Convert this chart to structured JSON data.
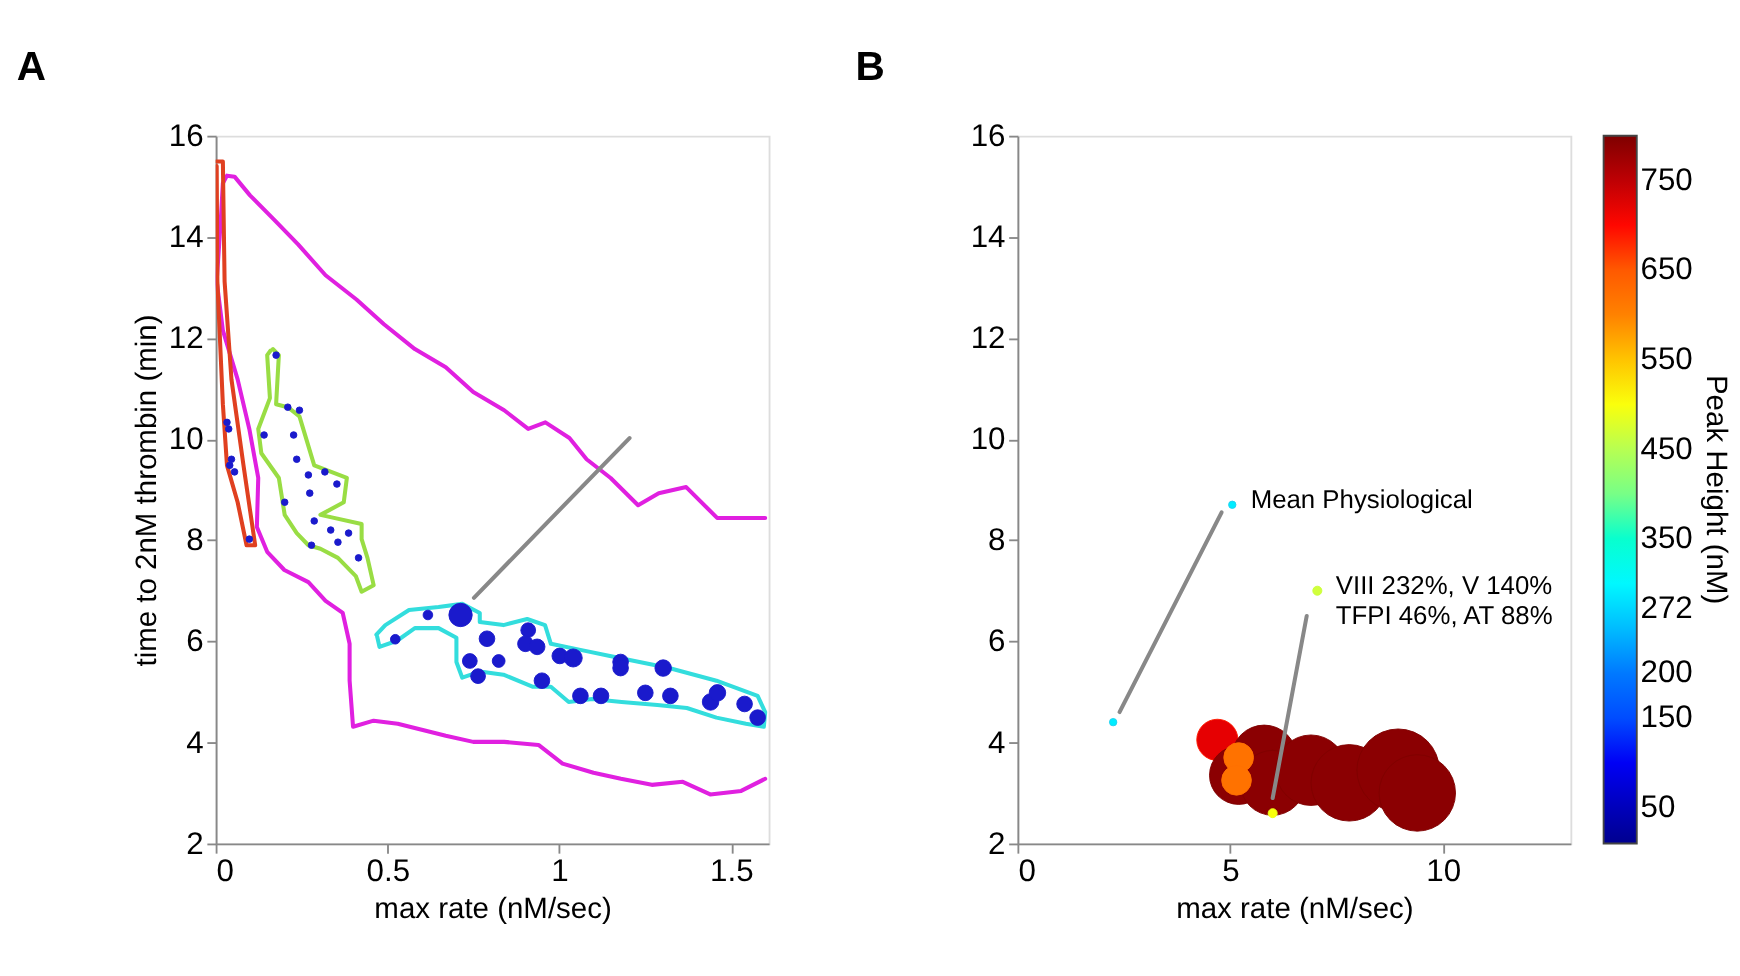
{
  "chart_data": [
    {
      "type": "line",
      "title": "A",
      "xlabel": "max rate (nM/sec)",
      "ylabel": "time to 2nM thrombin (min)",
      "xlim": [
        0,
        1.61
      ],
      "ylim": [
        2,
        16
      ],
      "xticks": [
        0,
        0.5,
        1,
        1.5
      ],
      "yticks": [
        2,
        4,
        6,
        8,
        10,
        12,
        14,
        16
      ],
      "series": [
        {
          "color": "#e020e0",
          "x": [
            1.6,
            1.46,
            1.37,
            1.29,
            1.23,
            1.15,
            1.08,
            1.03,
            0.96,
            0.91,
            0.84,
            0.75,
            0.67,
            0.58,
            0.49,
            0.41,
            0.32,
            0.24,
            0.17,
            0.1,
            0.055,
            0.033,
            0.021,
            0.015,
            0.003,
            0.021,
            0.064,
            0.098,
            0.124,
            0.12,
            0.15,
            0.2,
            0.27,
            0.32,
            0.37,
            0.39,
            0.39,
            0.4,
            0.46,
            0.53,
            0.6,
            0.67,
            0.75,
            0.84,
            0.94,
            1.01,
            1.1,
            1.18,
            1.27,
            1.36,
            1.44,
            1.53,
            1.6
          ],
          "values": [
            8.44,
            8.44,
            9.05,
            8.93,
            8.69,
            9.23,
            9.6,
            10.02,
            10.33,
            10.2,
            10.57,
            10.93,
            11.42,
            11.78,
            12.27,
            12.76,
            13.24,
            13.85,
            14.34,
            14.82,
            15.19,
            15.21,
            15.06,
            14.34,
            13.12,
            12.15,
            11.18,
            10.2,
            9.23,
            8.26,
            7.77,
            7.41,
            7.17,
            6.8,
            6.56,
            5.95,
            5.22,
            4.31,
            4.43,
            4.37,
            4.25,
            4.13,
            4.01,
            4.01,
            3.95,
            3.58,
            3.4,
            3.28,
            3.16,
            3.22,
            2.97,
            3.04,
            3.28
          ]
        },
        {
          "color": "#e04020",
          "x": [
            0.002,
            0.021,
            0.026,
            0.046,
            0.081,
            0.115,
            0.09,
            0.064,
            0.033,
            0.021,
            0.005,
            0.003
          ],
          "values": [
            15.49,
            15.49,
            13.12,
            11.18,
            9.48,
            7.9,
            7.9,
            8.75,
            9.48,
            10.69,
            13.12,
            15.4
          ]
        },
        {
          "color": "#99dd44",
          "x": [
            0.167,
            0.184,
            0.176,
            0.21,
            0.244,
            0.287,
            0.382,
            0.373,
            0.305,
            0.425,
            0.425,
            0.442,
            0.46,
            0.425,
            0.408,
            0.356,
            0.305,
            0.27,
            0.236,
            0.201,
            0.184,
            0.133,
            0.124,
            0.158,
            0.15,
            0.16
          ],
          "values": [
            11.78,
            11.66,
            10.69,
            10.63,
            10.45,
            9.48,
            9.23,
            8.75,
            8.5,
            8.32,
            8.02,
            7.65,
            7.11,
            6.98,
            7.29,
            7.65,
            7.83,
            7.9,
            8.14,
            8.5,
            9.23,
            9.72,
            10.2,
            10.81,
            11.66,
            11.75
          ]
        },
        {
          "color": "#33dddd",
          "x": [
            0.468,
            0.494,
            0.563,
            0.649,
            0.718,
            0.769,
            0.769,
            0.838,
            0.907,
            0.959,
            0.976,
            1.062,
            1.148,
            1.234,
            1.32,
            1.458,
            1.578,
            1.6,
            1.596,
            1.544,
            1.458,
            1.372,
            1.286,
            1.182,
            1.096,
            1.028,
            0.976,
            0.924,
            0.838,
            0.769,
            0.718,
            0.701,
            0.701,
            0.649,
            0.58,
            0.528,
            0.477,
            0.47
          ],
          "values": [
            6.13,
            6.32,
            6.62,
            6.68,
            6.74,
            6.56,
            6.38,
            6.32,
            6.44,
            6.32,
            5.95,
            5.83,
            5.71,
            5.59,
            5.47,
            5.22,
            4.92,
            4.6,
            4.31,
            4.37,
            4.49,
            4.68,
            4.74,
            4.8,
            4.86,
            4.8,
            5.1,
            5.1,
            5.34,
            5.4,
            5.28,
            5.59,
            6.07,
            6.26,
            6.26,
            6.01,
            5.89,
            6.1
          ]
        },
        {
          "type": "bubble",
          "color": "#1a1acc",
          "x": [
            0.033,
            0.038,
            0.046,
            0.041,
            0.055,
            0.098,
            0.176,
            0.21,
            0.244,
            0.227,
            0.236,
            0.27,
            0.274,
            0.318,
            0.353,
            0.201,
            0.287,
            0.335,
            0.387,
            0.279,
            0.356,
            0.416,
            0.141,
            0.523,
            0.618,
            0.713,
            0.74,
            0.764,
            0.79,
            0.824,
            0.91,
            0.902,
            0.936,
            0.95,
            1.002,
            1.041,
            1.062,
            1.122,
            1.179,
            1.179,
            1.251,
            1.303,
            1.324,
            1.441,
            1.461,
            1.54,
            1.578
          ],
          "values": [
            10.33,
            10.2,
            9.6,
            9.48,
            9.35,
            8.02,
            11.66,
            10.63,
            10.57,
            10.08,
            9.6,
            9.29,
            8.93,
            9.35,
            9.11,
            8.75,
            8.38,
            8.2,
            8.14,
            7.9,
            7.96,
            7.65,
            10.08,
            6.04,
            6.52,
            6.52,
            5.61,
            5.31,
            6.05,
            5.61,
            6.22,
            5.95,
            5.89,
            5.22,
            5.71,
            5.67,
            4.92,
            4.92,
            5.59,
            5.47,
            4.98,
            5.47,
            4.92,
            4.8,
            4.98,
            4.76,
            4.49
          ],
          "sizes": [
            0.08,
            0.08,
            0.08,
            0.08,
            0.08,
            0.08,
            0.08,
            0.08,
            0.08,
            0.08,
            0.08,
            0.08,
            0.08,
            0.08,
            0.08,
            0.08,
            0.08,
            0.08,
            0.08,
            0.08,
            0.08,
            0.08,
            0.08,
            0.17,
            0.17,
            1,
            0.4,
            0.4,
            0.45,
            0.3,
            0.4,
            0.45,
            0.45,
            0.45,
            0.45,
            0.6,
            0.45,
            0.45,
            0.45,
            0.45,
            0.45,
            0.5,
            0.45,
            0.5,
            0.5,
            0.45,
            0.45
          ]
        },
        {
          "color": "#888888",
          "x": [
            1.205,
            0.752
          ],
          "values": [
            10.02,
            6.86
          ]
        }
      ]
    },
    {
      "type": "bubble",
      "title": "B",
      "xlabel": "max rate (nM/sec)",
      "xlim": [
        0,
        13
      ],
      "ylim": [
        2,
        16
      ],
      "xticks": [
        0,
        5,
        10
      ],
      "yticks": [
        2,
        4,
        6,
        8,
        10,
        12,
        14,
        16
      ],
      "clabel": "Peak Height (nM)",
      "clim": [
        10,
        800
      ],
      "cticks": [
        50,
        150,
        200,
        272,
        350,
        450,
        550,
        650,
        750
      ],
      "annotations": [
        {
          "text": "Mean Physiological",
          "x": 5.05,
          "y": 8.7
        },
        {
          "text": "VIII 232%, V 140%\nTFPI 46%, AT 88%",
          "x": 7.05,
          "y": 7.0
        }
      ],
      "series": [
        {
          "x": [
            4.7,
            5.2,
            5.8,
            6.0,
            6.9,
            7.8,
            8.95,
            9.4,
            5.2,
            5.15,
            6.0,
            7.05,
            5.05,
            2.25
          ],
          "values": [
            4.05,
            3.35,
            3.7,
            3.2,
            3.45,
            3.2,
            3.45,
            3.0,
            3.7,
            3.25,
            2.6,
            7.0,
            8.7,
            4.4
          ],
          "sizes": [
            0.25,
            0.5,
            0.62,
            0.62,
            0.73,
            0.86,
            1,
            0.86,
            0.13,
            0.13,
            0.012,
            0.012,
            0.008,
            0.008
          ],
          "cvalues": [
            720,
            790,
            790,
            790,
            790,
            790,
            790,
            790,
            620,
            620,
            500,
            470,
            290,
            290
          ],
          "colors": [
            "#ff1a00",
            "#7f0000",
            "#7f0000",
            "#7f0000",
            "#7f0000",
            "#7f0000",
            "#7f0000",
            "#7f0000",
            "#ff7000",
            "#ff7000",
            "#eaff15",
            "#c8ff37",
            "#20d0f0",
            "#20d0f0"
          ]
        },
        {
          "type": "line",
          "color": "#888888",
          "x": [
            4.8,
            2.4
          ],
          "values": [
            8.55,
            4.6
          ]
        },
        {
          "type": "line",
          "color": "#888888",
          "x": [
            6.8,
            6.0
          ],
          "values": [
            6.5,
            2.9
          ]
        }
      ]
    }
  ]
}
